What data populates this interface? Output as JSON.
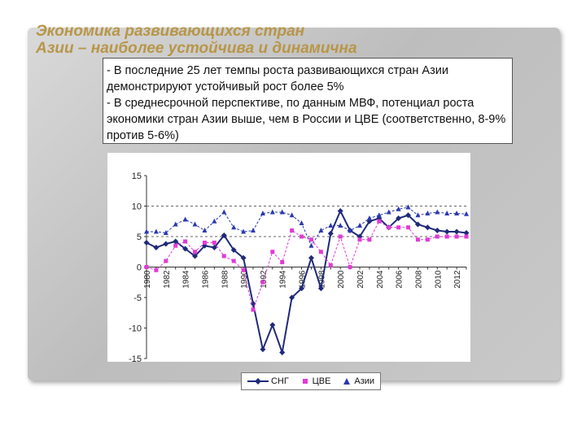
{
  "slide": {
    "title_line1": "Экономика развивающихся стран",
    "title_line2": "Азии – наиболее устойчива и динамична",
    "bullets": [
      "- В последние 25 лет темпы роста развивающихся стран Азии демонстрируют устойчивый рост более 5%",
      "- В среднесрочной перспективе, по данным МВФ, потенциал роста экономики стран Азии выше, чем в России и ЦВЕ (соответственно, 8-9% против 5-6%)"
    ]
  },
  "chart_data": {
    "type": "line",
    "x": [
      1980,
      1981,
      1982,
      1983,
      1984,
      1985,
      1986,
      1987,
      1988,
      1989,
      1990,
      1991,
      1992,
      1993,
      1994,
      1995,
      1996,
      1997,
      1998,
      1999,
      2000,
      2001,
      2002,
      2003,
      2004,
      2005,
      2006,
      2007,
      2008,
      2009,
      2010,
      2011,
      2012,
      2013
    ],
    "tick_labels": [
      "1980",
      "1982",
      "1984",
      "1986",
      "1988",
      "1990",
      "1992",
      "1994",
      "1996",
      "1998",
      "2000",
      "2002",
      "2004",
      "2006",
      "2008",
      "2010",
      "2012"
    ],
    "ylim": [
      -15,
      15
    ],
    "yticks": [
      "15",
      "10",
      "5",
      "0",
      "-5",
      "-10",
      "-15"
    ],
    "grid_values": [
      10,
      5
    ],
    "series": [
      {
        "name": "СНГ",
        "color": "#1f2a7a",
        "marker": "diamond",
        "values": [
          4,
          3.2,
          3.8,
          4.2,
          3,
          1.8,
          3.5,
          3.2,
          5.2,
          2.8,
          1.5,
          -6,
          -13.5,
          -9.5,
          -14,
          -5,
          -3.5,
          1.5,
          -3.5,
          5.5,
          9.2,
          6,
          5,
          7.5,
          8,
          6.5,
          8,
          8.5,
          7,
          6.5,
          6,
          5.8,
          5.8,
          5.6
        ]
      },
      {
        "name": "ЦВЕ",
        "color": "#e23ad6",
        "marker": "square",
        "values": [
          0,
          -0.5,
          1,
          3.5,
          4.2,
          2.5,
          4,
          4,
          1.8,
          1,
          -0.5,
          -7,
          -2.5,
          2.5,
          0.8,
          6,
          5,
          4.5,
          2.5,
          0.3,
          5,
          0,
          4.5,
          4.5,
          7.5,
          6.5,
          6.5,
          6.5,
          4.5,
          4.5,
          5,
          5,
          5,
          5
        ]
      },
      {
        "name": "Азии",
        "color": "#2b39b0",
        "marker": "triangle",
        "values": [
          5.8,
          5.8,
          5.6,
          7,
          7.8,
          7,
          6,
          7.5,
          9,
          6.5,
          5.8,
          6,
          8.8,
          9,
          9,
          8.5,
          7.2,
          3.5,
          6,
          6.8,
          6.8,
          6,
          6.8,
          8,
          8.5,
          9,
          9.5,
          9.8,
          8.5,
          8.8,
          9,
          8.8,
          8.8,
          8.7
        ]
      }
    ]
  }
}
